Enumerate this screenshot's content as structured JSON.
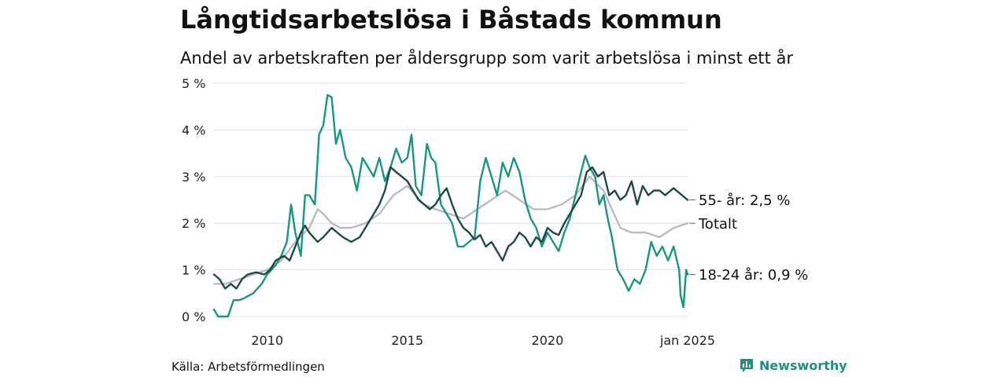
{
  "title": "Långtidsarbetslösa i Båstads kommun",
  "subtitle": "Andel av arbetskraften per åldersgrupp som varit arbetslösa i minst ett år",
  "source": "Källa: Arbetsförmedlingen",
  "brand": {
    "name": "Newsworthy",
    "icon": "newsworthy-logo-icon",
    "color": "#1f8f80"
  },
  "chart_data": {
    "type": "line",
    "xlim": [
      2008.1,
      2025.0
    ],
    "ylim": [
      0,
      5
    ],
    "yticks": [
      {
        "value": 0,
        "label": "0 %"
      },
      {
        "value": 1,
        "label": "1 %"
      },
      {
        "value": 2,
        "label": "2 %"
      },
      {
        "value": 3,
        "label": "3 %"
      },
      {
        "value": 4,
        "label": "4 %"
      },
      {
        "value": 5,
        "label": "5 %"
      }
    ],
    "xticks": [
      {
        "value": 2010,
        "label": "2010"
      },
      {
        "value": 2015,
        "label": "2015"
      },
      {
        "value": 2020,
        "label": "2020"
      },
      {
        "value": 2025,
        "label": "jan 2025"
      }
    ],
    "grid": true,
    "series": [
      {
        "key": "totalt",
        "name": "Totalt",
        "label": "Totalt",
        "color": "#bdb8c7",
        "points": [
          [
            2008.1,
            0.7
          ],
          [
            2008.5,
            0.7
          ],
          [
            2009.0,
            0.8
          ],
          [
            2009.5,
            0.9
          ],
          [
            2010.0,
            1.0
          ],
          [
            2010.5,
            1.2
          ],
          [
            2011.0,
            1.6
          ],
          [
            2011.5,
            1.9
          ],
          [
            2011.8,
            2.3
          ],
          [
            2012.0,
            2.2
          ],
          [
            2012.3,
            2.0
          ],
          [
            2012.6,
            1.9
          ],
          [
            2013.0,
            1.9
          ],
          [
            2013.5,
            2.0
          ],
          [
            2014.0,
            2.2
          ],
          [
            2014.5,
            2.6
          ],
          [
            2015.0,
            2.8
          ],
          [
            2015.3,
            2.6
          ],
          [
            2015.6,
            2.4
          ],
          [
            2016.0,
            2.3
          ],
          [
            2016.5,
            2.2
          ],
          [
            2017.0,
            2.1
          ],
          [
            2017.5,
            2.3
          ],
          [
            2018.0,
            2.5
          ],
          [
            2018.5,
            2.7
          ],
          [
            2019.0,
            2.5
          ],
          [
            2019.5,
            2.3
          ],
          [
            2020.0,
            2.3
          ],
          [
            2020.5,
            2.4
          ],
          [
            2021.0,
            2.6
          ],
          [
            2021.5,
            3.0
          ],
          [
            2022.0,
            2.7
          ],
          [
            2022.3,
            2.3
          ],
          [
            2022.6,
            1.9
          ],
          [
            2023.0,
            1.8
          ],
          [
            2023.5,
            1.8
          ],
          [
            2024.0,
            1.7
          ],
          [
            2024.5,
            1.9
          ],
          [
            2025.0,
            2.0
          ]
        ]
      },
      {
        "key": "ungdom",
        "name": "18-24 år",
        "label": "18-24 år: 0,9 %",
        "color": "#1a9581",
        "points": [
          [
            2008.1,
            0.15
          ],
          [
            2008.25,
            0.0
          ],
          [
            2008.6,
            0.0
          ],
          [
            2008.8,
            0.35
          ],
          [
            2009.0,
            0.35
          ],
          [
            2009.2,
            0.4
          ],
          [
            2009.5,
            0.5
          ],
          [
            2009.8,
            0.7
          ],
          [
            2010.0,
            0.9
          ],
          [
            2010.3,
            1.1
          ],
          [
            2010.5,
            1.3
          ],
          [
            2010.7,
            1.6
          ],
          [
            2010.85,
            2.4
          ],
          [
            2011.0,
            1.8
          ],
          [
            2011.2,
            1.3
          ],
          [
            2011.35,
            2.6
          ],
          [
            2011.5,
            2.6
          ],
          [
            2011.7,
            2.4
          ],
          [
            2011.85,
            3.9
          ],
          [
            2012.0,
            4.1
          ],
          [
            2012.15,
            4.75
          ],
          [
            2012.3,
            4.7
          ],
          [
            2012.45,
            3.7
          ],
          [
            2012.6,
            4.0
          ],
          [
            2012.8,
            3.4
          ],
          [
            2013.0,
            3.2
          ],
          [
            2013.2,
            2.7
          ],
          [
            2013.4,
            3.4
          ],
          [
            2013.6,
            3.2
          ],
          [
            2013.8,
            3.0
          ],
          [
            2014.0,
            3.4
          ],
          [
            2014.2,
            2.9
          ],
          [
            2014.4,
            3.2
          ],
          [
            2014.6,
            3.6
          ],
          [
            2014.8,
            3.3
          ],
          [
            2015.0,
            3.4
          ],
          [
            2015.15,
            3.9
          ],
          [
            2015.3,
            2.8
          ],
          [
            2015.5,
            2.6
          ],
          [
            2015.7,
            3.7
          ],
          [
            2015.85,
            3.4
          ],
          [
            2016.0,
            3.3
          ],
          [
            2016.2,
            2.4
          ],
          [
            2016.4,
            2.2
          ],
          [
            2016.6,
            2.0
          ],
          [
            2016.8,
            1.5
          ],
          [
            2017.0,
            1.5
          ],
          [
            2017.2,
            1.6
          ],
          [
            2017.4,
            1.7
          ],
          [
            2017.6,
            2.9
          ],
          [
            2017.8,
            3.4
          ],
          [
            2018.0,
            3.0
          ],
          [
            2018.2,
            2.6
          ],
          [
            2018.4,
            3.3
          ],
          [
            2018.6,
            3.0
          ],
          [
            2018.8,
            3.4
          ],
          [
            2019.0,
            3.1
          ],
          [
            2019.2,
            2.5
          ],
          [
            2019.4,
            2.1
          ],
          [
            2019.6,
            1.9
          ],
          [
            2019.8,
            1.5
          ],
          [
            2020.0,
            1.8
          ],
          [
            2020.2,
            1.6
          ],
          [
            2020.4,
            1.4
          ],
          [
            2020.6,
            1.8
          ],
          [
            2020.8,
            2.1
          ],
          [
            2021.0,
            2.6
          ],
          [
            2021.2,
            3.1
          ],
          [
            2021.35,
            3.45
          ],
          [
            2021.5,
            3.2
          ],
          [
            2021.7,
            3.0
          ],
          [
            2021.85,
            2.4
          ],
          [
            2022.0,
            2.6
          ],
          [
            2022.15,
            2.1
          ],
          [
            2022.3,
            1.7
          ],
          [
            2022.5,
            1.0
          ],
          [
            2022.7,
            0.8
          ],
          [
            2022.9,
            0.55
          ],
          [
            2023.1,
            0.8
          ],
          [
            2023.3,
            0.7
          ],
          [
            2023.5,
            1.0
          ],
          [
            2023.7,
            1.6
          ],
          [
            2023.9,
            1.3
          ],
          [
            2024.1,
            1.5
          ],
          [
            2024.3,
            1.2
          ],
          [
            2024.5,
            1.5
          ],
          [
            2024.7,
            1.0
          ],
          [
            2024.75,
            0.45
          ],
          [
            2024.85,
            0.2
          ],
          [
            2024.95,
            1.0
          ],
          [
            2025.0,
            0.9
          ]
        ]
      },
      {
        "key": "seniorer",
        "name": "55- år",
        "label": "55- år: 2,5 %",
        "color": "#1d4a45",
        "points": [
          [
            2008.1,
            0.9
          ],
          [
            2008.3,
            0.8
          ],
          [
            2008.5,
            0.6
          ],
          [
            2008.7,
            0.7
          ],
          [
            2008.9,
            0.6
          ],
          [
            2009.1,
            0.8
          ],
          [
            2009.3,
            0.9
          ],
          [
            2009.6,
            0.95
          ],
          [
            2009.9,
            0.9
          ],
          [
            2010.1,
            1.0
          ],
          [
            2010.3,
            1.2
          ],
          [
            2010.6,
            1.3
          ],
          [
            2010.8,
            1.2
          ],
          [
            2011.0,
            1.5
          ],
          [
            2011.2,
            1.8
          ],
          [
            2011.35,
            1.95
          ],
          [
            2011.5,
            1.8
          ],
          [
            2011.8,
            1.6
          ],
          [
            2012.0,
            1.7
          ],
          [
            2012.3,
            1.9
          ],
          [
            2012.5,
            1.8
          ],
          [
            2012.7,
            1.7
          ],
          [
            2013.0,
            1.6
          ],
          [
            2013.3,
            1.7
          ],
          [
            2013.5,
            1.9
          ],
          [
            2013.7,
            2.1
          ],
          [
            2014.0,
            2.4
          ],
          [
            2014.2,
            2.7
          ],
          [
            2014.4,
            3.2
          ],
          [
            2014.6,
            3.1
          ],
          [
            2014.8,
            3.0
          ],
          [
            2015.0,
            2.9
          ],
          [
            2015.2,
            2.7
          ],
          [
            2015.4,
            2.5
          ],
          [
            2015.6,
            2.4
          ],
          [
            2015.8,
            2.3
          ],
          [
            2016.0,
            2.4
          ],
          [
            2016.2,
            2.6
          ],
          [
            2016.4,
            2.75
          ],
          [
            2016.6,
            2.4
          ],
          [
            2016.8,
            2.1
          ],
          [
            2017.0,
            1.9
          ],
          [
            2017.2,
            1.8
          ],
          [
            2017.4,
            1.65
          ],
          [
            2017.6,
            1.75
          ],
          [
            2017.8,
            1.5
          ],
          [
            2018.0,
            1.6
          ],
          [
            2018.2,
            1.4
          ],
          [
            2018.4,
            1.2
          ],
          [
            2018.6,
            1.5
          ],
          [
            2018.8,
            1.6
          ],
          [
            2019.0,
            1.8
          ],
          [
            2019.2,
            1.7
          ],
          [
            2019.4,
            1.5
          ],
          [
            2019.6,
            1.7
          ],
          [
            2019.8,
            1.6
          ],
          [
            2020.0,
            1.9
          ],
          [
            2020.2,
            1.8
          ],
          [
            2020.4,
            1.75
          ],
          [
            2020.6,
            2.0
          ],
          [
            2020.8,
            2.2
          ],
          [
            2021.0,
            2.4
          ],
          [
            2021.2,
            2.6
          ],
          [
            2021.4,
            3.1
          ],
          [
            2021.6,
            3.2
          ],
          [
            2021.8,
            3.0
          ],
          [
            2022.0,
            3.1
          ],
          [
            2022.2,
            2.6
          ],
          [
            2022.4,
            2.7
          ],
          [
            2022.6,
            2.5
          ],
          [
            2022.8,
            2.6
          ],
          [
            2023.0,
            2.9
          ],
          [
            2023.2,
            2.4
          ],
          [
            2023.4,
            2.8
          ],
          [
            2023.6,
            2.6
          ],
          [
            2023.8,
            2.7
          ],
          [
            2024.0,
            2.7
          ],
          [
            2024.2,
            2.6
          ],
          [
            2024.5,
            2.75
          ],
          [
            2024.8,
            2.6
          ],
          [
            2025.0,
            2.5
          ]
        ]
      }
    ]
  }
}
